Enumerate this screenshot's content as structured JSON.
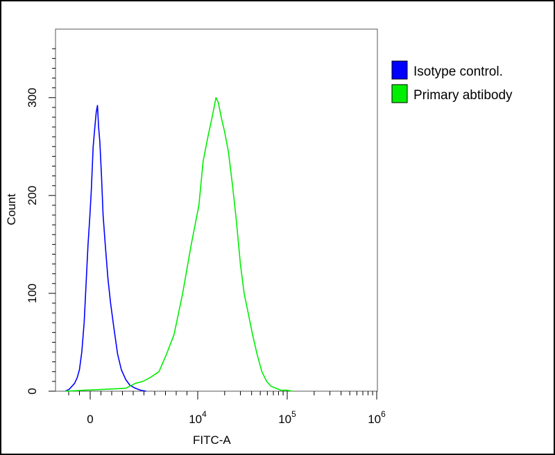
{
  "chart_data": {
    "type": "line",
    "title": "",
    "xlabel": "FITC-A",
    "ylabel": "Count",
    "x_scale": "biexponential",
    "ylim": [
      0,
      370
    ],
    "y_ticks": [
      {
        "value": 0,
        "label": "0"
      },
      {
        "value": 100,
        "label": "100"
      },
      {
        "value": 200,
        "label": "200"
      },
      {
        "value": 300,
        "label": "300"
      }
    ],
    "x_ticks": [
      {
        "value": 0,
        "base": "0",
        "exp": ""
      },
      {
        "value": 10000,
        "base": "10",
        "exp": "4"
      },
      {
        "value": 100000,
        "base": "10",
        "exp": "5"
      },
      {
        "value": 1000000,
        "base": "10",
        "exp": "6"
      }
    ],
    "legend_position": "right",
    "grid": false,
    "series": [
      {
        "name": "Isotype control.",
        "color": "#0000ff",
        "points": [
          [
            -2300,
            0
          ],
          [
            -1950,
            2
          ],
          [
            -1700,
            5
          ],
          [
            -1450,
            8
          ],
          [
            -1200,
            14
          ],
          [
            -1000,
            22
          ],
          [
            -780,
            40
          ],
          [
            -560,
            70
          ],
          [
            -380,
            110
          ],
          [
            -200,
            150
          ],
          [
            -50,
            175
          ],
          [
            100,
            205
          ],
          [
            280,
            250
          ],
          [
            420,
            268
          ],
          [
            560,
            285
          ],
          [
            680,
            292
          ],
          [
            780,
            270
          ],
          [
            900,
            255
          ],
          [
            1050,
            220
          ],
          [
            1200,
            180
          ],
          [
            1400,
            150
          ],
          [
            1650,
            115
          ],
          [
            1900,
            90
          ],
          [
            2200,
            65
          ],
          [
            2550,
            38
          ],
          [
            2900,
            22
          ],
          [
            3300,
            12
          ],
          [
            3700,
            6
          ],
          [
            4200,
            3
          ],
          [
            4700,
            1
          ],
          [
            5200,
            0
          ]
        ]
      },
      {
        "name": "Primary abtibody",
        "color": "#00ee00",
        "points": [
          [
            -2300,
            0
          ],
          [
            -500,
            1
          ],
          [
            1500,
            2
          ],
          [
            3300,
            3
          ],
          [
            4200,
            8
          ],
          [
            4900,
            10
          ],
          [
            5600,
            14
          ],
          [
            6400,
            20
          ],
          [
            7100,
            38
          ],
          [
            7800,
            58
          ],
          [
            8600,
            100
          ],
          [
            9400,
            150
          ],
          [
            10300,
            190
          ],
          [
            11500,
            235
          ],
          [
            13000,
            260
          ],
          [
            14500,
            280
          ],
          [
            16000,
            300
          ],
          [
            17000,
            295
          ],
          [
            18500,
            278
          ],
          [
            20000,
            265
          ],
          [
            22000,
            245
          ],
          [
            24500,
            210
          ],
          [
            27000,
            175
          ],
          [
            30000,
            130
          ],
          [
            33000,
            100
          ],
          [
            37000,
            78
          ],
          [
            41000,
            58
          ],
          [
            46000,
            38
          ],
          [
            52000,
            20
          ],
          [
            59000,
            10
          ],
          [
            66000,
            5
          ],
          [
            75000,
            3
          ],
          [
            85000,
            1
          ],
          [
            100000,
            1
          ],
          [
            115000,
            0
          ]
        ]
      }
    ]
  }
}
